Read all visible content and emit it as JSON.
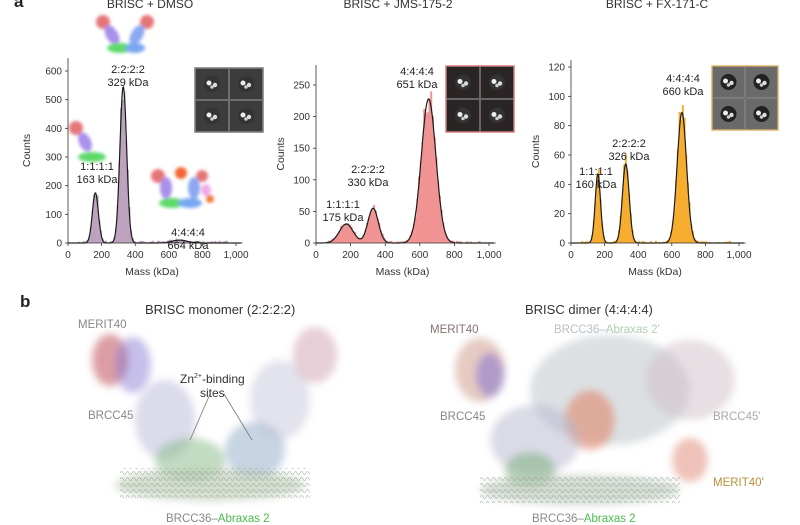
{
  "panel_a_letter": "a",
  "panel_b_letter": "b",
  "chart_data": [
    {
      "type": "bar",
      "title": "BRISC + DMSO",
      "xlabel": "Mass (kDa)",
      "ylabel": "Counts",
      "xlim": [
        0,
        1050
      ],
      "ylim": [
        0,
        650
      ],
      "xticks": [
        "0",
        "200",
        "400",
        "600",
        "800",
        "1,000"
      ],
      "yticks": [
        "0",
        "100",
        "200",
        "300",
        "400",
        "500",
        "600"
      ],
      "color": "#b79ab8",
      "inset_border": "#555555",
      "peaks": [
        {
          "stoichiometry": "1:1:1:1",
          "mass_label": "163 kDa",
          "mass": 163,
          "counts": 175
        },
        {
          "stoichiometry": "2:2:2:2",
          "mass_label": "329 kDa",
          "mass": 329,
          "counts": 545
        },
        {
          "stoichiometry": "4:4:4:4",
          "mass_label": "664 kDa",
          "mass": 664,
          "counts": 10
        }
      ]
    },
    {
      "type": "bar",
      "title": "BRISC + JMS-175-2",
      "xlabel": "Mass (kDa)",
      "ylabel": "Counts",
      "xlim": [
        0,
        1050
      ],
      "ylim": [
        0,
        280
      ],
      "xticks": [
        "0",
        "200",
        "400",
        "600",
        "800",
        "1,000"
      ],
      "yticks": [
        "0",
        "50",
        "100",
        "150",
        "200",
        "250"
      ],
      "color": "#ef8a8a",
      "inset_border": "#d9534f",
      "peaks": [
        {
          "stoichiometry": "1:1:1:1",
          "mass_label": "175 kDa",
          "mass": 175,
          "counts": 30
        },
        {
          "stoichiometry": "2:2:2:2",
          "mass_label": "330 kDa",
          "mass": 330,
          "counts": 55
        },
        {
          "stoichiometry": "4:4:4:4",
          "mass_label": "651 kDa",
          "mass": 651,
          "counts": 228
        }
      ]
    },
    {
      "type": "bar",
      "title": "BRISC + FX-171-C",
      "xlabel": "Mass (kDa)",
      "ylabel": "Counts",
      "xlim": [
        0,
        1050
      ],
      "ylim": [
        0,
        125
      ],
      "xticks": [
        "0",
        "200",
        "400",
        "600",
        "800",
        "1,000"
      ],
      "yticks": [
        "0",
        "20",
        "40",
        "60",
        "80",
        "100",
        "120"
      ],
      "color": "#f5a51c",
      "inset_border": "#e0a030",
      "peaks": [
        {
          "stoichiometry": "1:1:1:1",
          "mass_label": "160 kDa",
          "mass": 160,
          "counts": 47
        },
        {
          "stoichiometry": "2:2:2:2",
          "mass_label": "326 kDa",
          "mass": 326,
          "counts": 54
        },
        {
          "stoichiometry": "4:4:4:4",
          "mass_label": "660 kDa",
          "mass": 660,
          "counts": 89
        }
      ]
    }
  ],
  "monomer": {
    "title": "BRISC monomer (2:2:2:2)",
    "merit40": "MERIT40",
    "brcc45": "BRCC45",
    "zn_line1": "Zn",
    "zn_sup": "2+",
    "zn_line1b": "-binding",
    "zn_line2": "sites",
    "brcc36": "BRCC36",
    "dash": "–",
    "abraxas": "Abraxas 2"
  },
  "dimer": {
    "title": "BRISC dimer (4:4:4:4)",
    "merit40": "MERIT40",
    "brcc36_prime": "BRCC36",
    "abraxas_prime": "Abraxas 2'",
    "brcc45": "BRCC45",
    "brcc45_prime": "BRCC45'",
    "merit40_prime": "MERIT40'",
    "brcc36": "BRCC36",
    "dash": "–",
    "abraxas": "Abraxas 2"
  }
}
